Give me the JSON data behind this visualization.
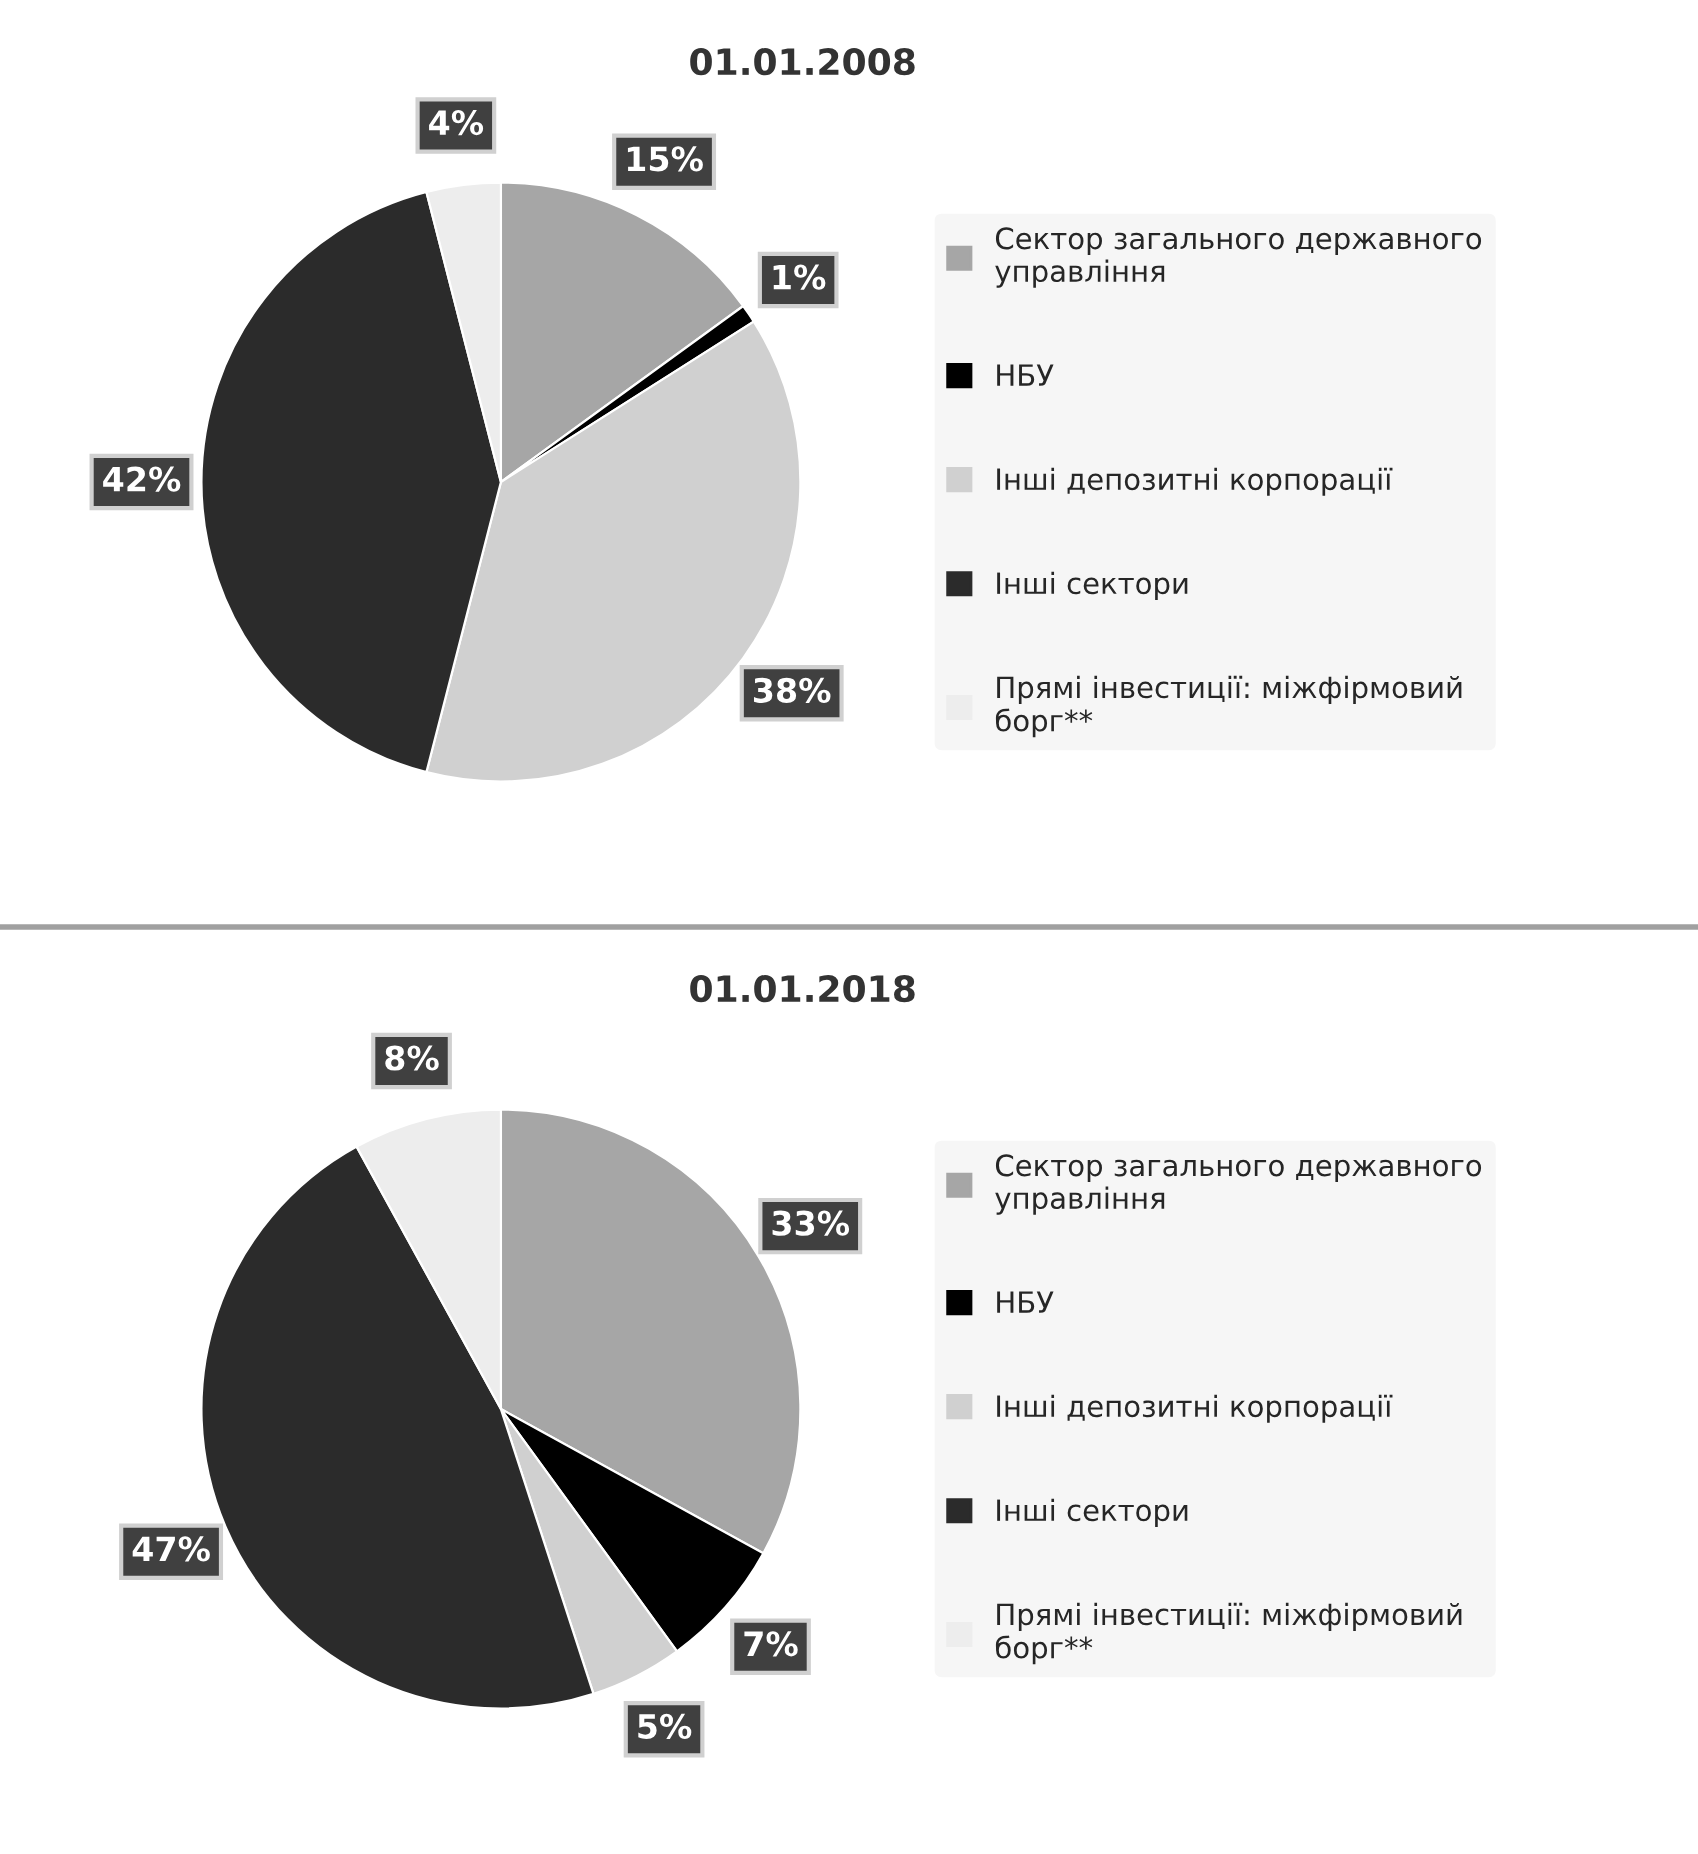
{
  "chart_data": [
    {
      "type": "pie",
      "title": "01.01.2008",
      "categories": [
        "Сектор загального державного\nуправління",
        "НБУ",
        "Інші депозитні корпорації",
        "Інші сектори",
        "Прямі інвестиції: міжфірмовий\nборг**"
      ],
      "values": [
        15,
        1,
        38,
        42,
        4
      ],
      "value_labels": [
        "15%",
        "1%",
        "38%",
        "42%",
        "4%"
      ],
      "colors": [
        "#a6a6a6",
        "#000000",
        "#d0d0d0",
        "#2b2b2b",
        "#ededed"
      ],
      "legend": "right"
    },
    {
      "type": "pie",
      "title": "01.01.2018",
      "categories": [
        "Сектор загального державного\nуправління",
        "НБУ",
        "Інші депозитні корпорації",
        "Інші сектори",
        "Прямі інвестиції: міжфірмовий\nборг**"
      ],
      "values": [
        33,
        7,
        5,
        47,
        8
      ],
      "value_labels": [
        "33%",
        "7%",
        "5%",
        "47%",
        "8%"
      ],
      "colors": [
        "#a6a6a6",
        "#000000",
        "#d0d0d0",
        "#2b2b2b",
        "#ededed"
      ],
      "legend": "right"
    }
  ]
}
